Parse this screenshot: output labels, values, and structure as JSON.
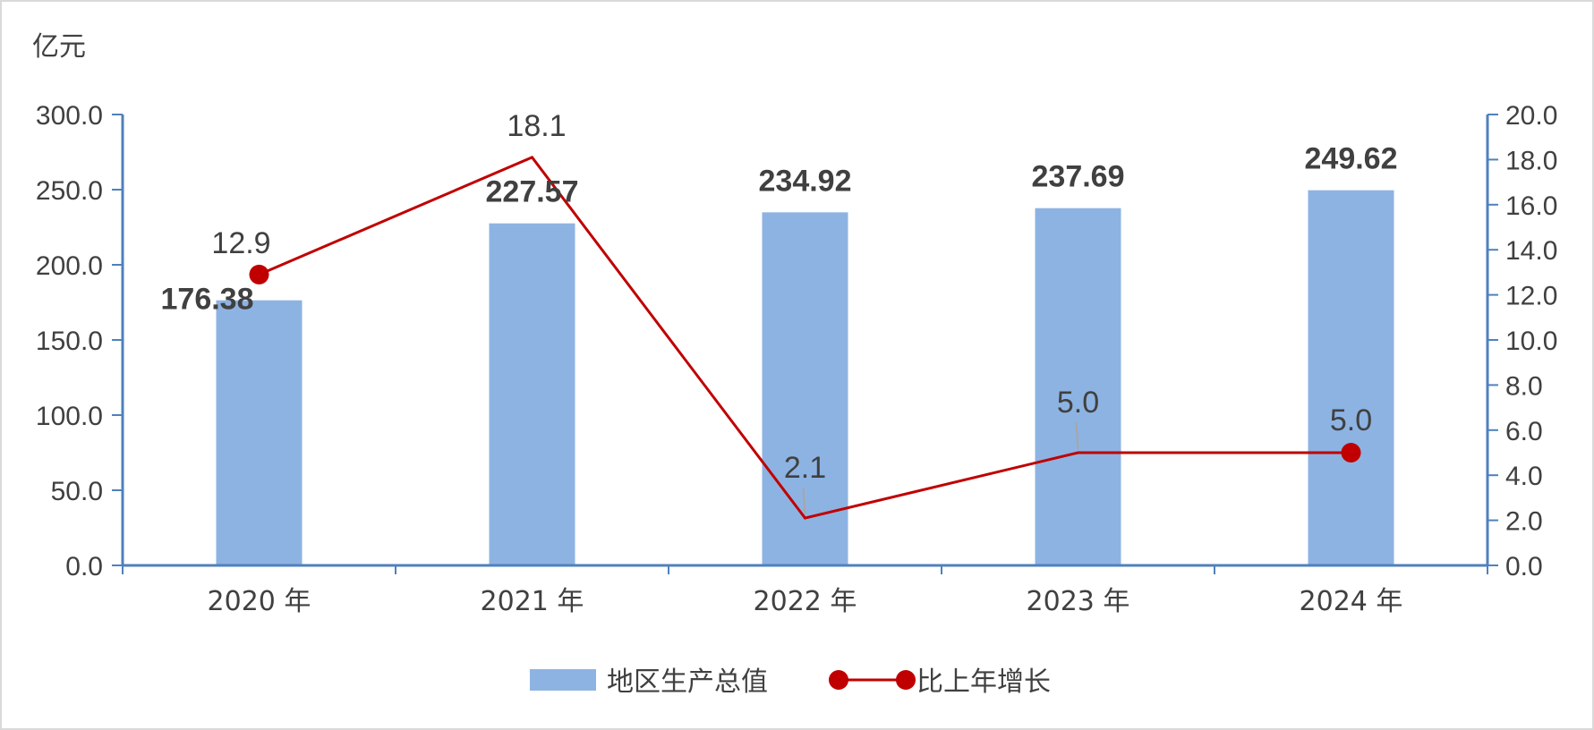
{
  "chart_data": {
    "type": "bar",
    "y_unit_label": "亿元",
    "categories": [
      "2020 年",
      "2021 年",
      "2022 年",
      "2023 年",
      "2024 年"
    ],
    "series": [
      {
        "name": "地区生产总值",
        "type": "bar",
        "axis": "left",
        "values": [
          176.38,
          227.57,
          234.92,
          237.69,
          249.62
        ],
        "labels": [
          "176.38",
          "227.57",
          "234.92",
          "237.69",
          "249.62"
        ],
        "color": "#8db3e2"
      },
      {
        "name": "比上年增长",
        "type": "line",
        "axis": "right",
        "values": [
          12.9,
          18.1,
          2.1,
          5.0,
          5.0
        ],
        "labels": [
          "12.9",
          "18.1",
          "2.1",
          "5.0",
          "5.0"
        ],
        "color": "#c00000"
      }
    ],
    "y_left": {
      "min": 0,
      "max": 300,
      "step": 50,
      "tick_labels": [
        "0.0",
        "50.0",
        "100.0",
        "150.0",
        "200.0",
        "250.0",
        "300.0"
      ]
    },
    "y_right": {
      "min": 0,
      "max": 20,
      "step": 2,
      "tick_labels": [
        "0.0",
        "2.0",
        "4.0",
        "6.0",
        "8.0",
        "10.0",
        "12.0",
        "14.0",
        "16.0",
        "18.0",
        "20.0"
      ]
    },
    "line_markers": [
      true,
      false,
      false,
      false,
      true
    ],
    "axis_color": "#4f81bd",
    "legend_position": "bottom",
    "grid": false
  }
}
